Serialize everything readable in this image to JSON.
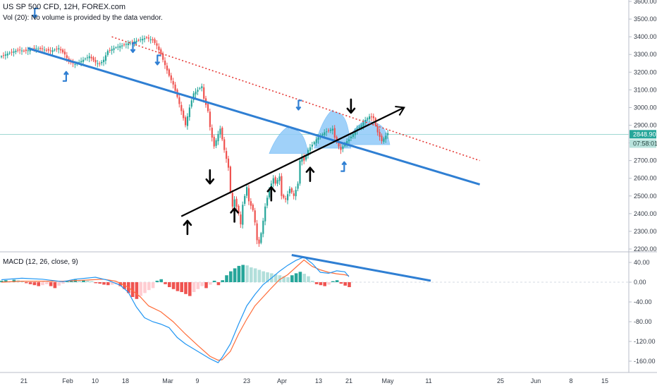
{
  "header": {
    "title": "US SP 500 CFD, 12H, FOREX.com",
    "volume_note": "Vol (20): No volume is provided by the data vendor.",
    "macd_label": "MACD (12, 26, close, 9)"
  },
  "colors": {
    "up": "#26a69a",
    "down": "#ef5350",
    "trendline": "#2f7fd3",
    "support": "#000000",
    "resistance": "#e53935",
    "pattern_fill": "#90caf9",
    "macd_line": "#2196f3",
    "signal_line": "#ff6d3a",
    "hist_pos_strong": "#26a69a",
    "hist_pos_weak": "#b2dfdb",
    "hist_neg_strong": "#ef5350",
    "hist_neg_weak": "#ffcdd2",
    "price_badge": "#26a69a",
    "countdown_badge": "#b9e3dd"
  },
  "chart_data": [
    {
      "type": "candlestick",
      "ylim": [
        2180,
        3600
      ],
      "y_ticks": [
        "3600.00",
        "3500.00",
        "3400.00",
        "3300.00",
        "3200.00",
        "3100.00",
        "3000.00",
        "2900.00",
        "2800.00",
        "2700.00",
        "2600.00",
        "2500.00",
        "2400.00",
        "2300.00",
        "2200.00"
      ],
      "y_tick_values": [
        3600,
        3500,
        3400,
        3300,
        3200,
        3100,
        3000,
        2900,
        2800,
        2700,
        2600,
        2500,
        2400,
        2300,
        2200
      ],
      "x_ticks": [
        "21",
        "Feb",
        "10",
        "18",
        "Mar",
        "9",
        "23",
        "Apr",
        "13",
        "21",
        "May",
        "11",
        "25",
        "Jun",
        "8",
        "15"
      ],
      "last_price": "2848.90",
      "last_price_value": 2848.9,
      "countdown": "07:58:01",
      "countdown_value": 2796,
      "price_path": [
        [
          0,
          3290
        ],
        [
          4,
          3310
        ],
        [
          8,
          3325
        ],
        [
          12,
          3320
        ],
        [
          16,
          3335
        ],
        [
          20,
          3330
        ],
        [
          24,
          3320
        ],
        [
          28,
          3335
        ],
        [
          31,
          3300
        ],
        [
          33,
          3260
        ],
        [
          36,
          3245
        ],
        [
          40,
          3270
        ],
        [
          43,
          3290
        ],
        [
          46,
          3255
        ],
        [
          48,
          3245
        ],
        [
          50,
          3270
        ],
        [
          52,
          3320
        ],
        [
          56,
          3340
        ],
        [
          60,
          3355
        ],
        [
          64,
          3370
        ],
        [
          68,
          3385
        ],
        [
          71,
          3395
        ],
        [
          74,
          3380
        ],
        [
          76,
          3350
        ],
        [
          78,
          3300
        ],
        [
          80,
          3240
        ],
        [
          82,
          3180
        ],
        [
          84,
          3130
        ],
        [
          86,
          3060
        ],
        [
          88,
          2980
        ],
        [
          90,
          2900
        ],
        [
          92,
          3000
        ],
        [
          94,
          3080
        ],
        [
          96,
          3100
        ],
        [
          98,
          3120
        ],
        [
          99,
          3050
        ],
        [
          101,
          2980
        ],
        [
          102,
          2890
        ],
        [
          103,
          2830
        ],
        [
          104,
          2780
        ],
        [
          106,
          2850
        ],
        [
          107,
          2880
        ],
        [
          109,
          2760
        ],
        [
          111,
          2660
        ],
        [
          112,
          2520
        ],
        [
          113,
          2440
        ],
        [
          114,
          2480
        ],
        [
          116,
          2400
        ],
        [
          117,
          2340
        ],
        [
          118,
          2450
        ],
        [
          120,
          2550
        ],
        [
          121,
          2470
        ],
        [
          123,
          2420
        ],
        [
          124,
          2350
        ],
        [
          125,
          2250
        ],
        [
          126,
          2230
        ],
        [
          127,
          2290
        ],
        [
          128,
          2360
        ],
        [
          129,
          2440
        ],
        [
          130,
          2490
        ],
        [
          131,
          2540
        ],
        [
          133,
          2600
        ],
        [
          134,
          2570
        ],
        [
          136,
          2610
        ],
        [
          137,
          2500
        ],
        [
          139,
          2480
        ],
        [
          141,
          2540
        ],
        [
          143,
          2500
        ],
        [
          145,
          2570
        ],
        [
          146,
          2700
        ],
        [
          147,
          2720
        ],
        [
          148,
          2700
        ],
        [
          150,
          2760
        ],
        [
          152,
          2790
        ],
        [
          154,
          2820
        ],
        [
          156,
          2840
        ],
        [
          158,
          2860
        ],
        [
          160,
          2870
        ],
        [
          162,
          2880
        ],
        [
          163,
          2830
        ],
        [
          165,
          2780
        ],
        [
          166,
          2760
        ],
        [
          168,
          2800
        ],
        [
          170,
          2820
        ],
        [
          172,
          2850
        ],
        [
          174,
          2880
        ],
        [
          176,
          2900
        ],
        [
          178,
          2930
        ],
        [
          180,
          2950
        ],
        [
          182,
          2940
        ],
        [
          184,
          2860
        ],
        [
          186,
          2810
        ],
        [
          188,
          2840
        ],
        [
          189,
          2855
        ]
      ],
      "lines": [
        {
          "name": "upper-trendline",
          "from": [
            13,
            3335
          ],
          "to": [
            234,
            2565
          ]
        },
        {
          "name": "support-trendline",
          "from": [
            88,
            2385
          ],
          "to": [
            197,
            3000
          ]
        },
        {
          "name": "resistance-dotted",
          "from": [
            54,
            3400
          ],
          "to": [
            234,
            2700
          ]
        }
      ],
      "arrows": [
        {
          "dir": "down",
          "style": "hook",
          "at": [
            17,
            3520
          ]
        },
        {
          "dir": "up",
          "style": "hook",
          "at": [
            31,
            3190
          ]
        },
        {
          "dir": "down",
          "style": "hook",
          "at": [
            65,
            3325
          ]
        },
        {
          "dir": "down",
          "style": "hook",
          "at": [
            77,
            3255
          ]
        },
        {
          "dir": "down",
          "style": "hook",
          "at": [
            146,
            3000
          ]
        },
        {
          "dir": "up",
          "style": "hook",
          "at": [
            167,
            2680
          ]
        },
        {
          "dir": "down",
          "style": "solid",
          "at": [
            102,
            2590
          ]
        },
        {
          "dir": "down",
          "style": "solid",
          "at": [
            171,
            2990
          ]
        },
        {
          "dir": "up",
          "style": "solid",
          "at": [
            91,
            2340
          ]
        },
        {
          "dir": "up",
          "style": "solid",
          "at": [
            114,
            2410
          ]
        },
        {
          "dir": "up",
          "style": "solid",
          "at": [
            132,
            2530
          ]
        },
        {
          "dir": "up",
          "style": "solid",
          "at": [
            151,
            2640
          ]
        }
      ],
      "patterns": [
        {
          "name": "left-shoulder",
          "from": 131,
          "to": 150,
          "base": 2740,
          "peak": 2880
        },
        {
          "name": "head",
          "from": 153,
          "to": 171,
          "base": 2770,
          "peak": 2975
        },
        {
          "name": "right-shoulder",
          "from": 168,
          "to": 190,
          "base": 2790,
          "peak": 2920
        }
      ]
    },
    {
      "type": "macd",
      "ylim": [
        -180,
        60
      ],
      "y_ticks": [
        "40.00",
        "0.00",
        "-40.00",
        "-80.00",
        "-120.00",
        "-160.00"
      ],
      "y_tick_values": [
        40,
        0,
        -40,
        -80,
        -120,
        -160
      ],
      "macd_line": [
        [
          0,
          5
        ],
        [
          10,
          8
        ],
        [
          20,
          6
        ],
        [
          30,
          1
        ],
        [
          36,
          6
        ],
        [
          46,
          10
        ],
        [
          52,
          4
        ],
        [
          58,
          -6
        ],
        [
          62,
          -20
        ],
        [
          66,
          -50
        ],
        [
          70,
          -72
        ],
        [
          74,
          -80
        ],
        [
          78,
          -85
        ],
        [
          82,
          -92
        ],
        [
          86,
          -112
        ],
        [
          90,
          -125
        ],
        [
          94,
          -135
        ],
        [
          98,
          -145
        ],
        [
          102,
          -155
        ],
        [
          106,
          -163
        ],
        [
          108,
          -152
        ],
        [
          112,
          -125
        ],
        [
          116,
          -85
        ],
        [
          120,
          -48
        ],
        [
          124,
          -25
        ],
        [
          128,
          -5
        ],
        [
          132,
          8
        ],
        [
          136,
          22
        ],
        [
          140,
          34
        ],
        [
          144,
          44
        ],
        [
          148,
          51
        ],
        [
          152,
          38
        ],
        [
          156,
          20
        ],
        [
          160,
          18
        ],
        [
          164,
          23
        ],
        [
          168,
          21
        ],
        [
          170,
          11
        ]
      ],
      "signal_line": [
        [
          0,
          0
        ],
        [
          10,
          2
        ],
        [
          20,
          2
        ],
        [
          30,
          2
        ],
        [
          40,
          4
        ],
        [
          50,
          6
        ],
        [
          56,
          2
        ],
        [
          62,
          -10
        ],
        [
          68,
          -30
        ],
        [
          72,
          -48
        ],
        [
          78,
          -60
        ],
        [
          84,
          -80
        ],
        [
          90,
          -105
        ],
        [
          96,
          -128
        ],
        [
          102,
          -150
        ],
        [
          106,
          -158
        ],
        [
          108,
          -157
        ],
        [
          112,
          -140
        ],
        [
          116,
          -105
        ],
        [
          120,
          -75
        ],
        [
          124,
          -48
        ],
        [
          128,
          -30
        ],
        [
          132,
          -12
        ],
        [
          136,
          5
        ],
        [
          140,
          15
        ],
        [
          144,
          30
        ],
        [
          148,
          45
        ],
        [
          152,
          32
        ],
        [
          156,
          25
        ],
        [
          160,
          20
        ],
        [
          164,
          17
        ],
        [
          168,
          15
        ],
        [
          170,
          13
        ]
      ],
      "histogram": [
        [
          0,
          3
        ],
        [
          2,
          4
        ],
        [
          4,
          2
        ],
        [
          6,
          5
        ],
        [
          8,
          4
        ],
        [
          10,
          3
        ],
        [
          12,
          -2
        ],
        [
          14,
          -4
        ],
        [
          16,
          -6
        ],
        [
          18,
          -8
        ],
        [
          20,
          -6
        ],
        [
          22,
          -4
        ],
        [
          24,
          -8
        ],
        [
          26,
          -12
        ],
        [
          28,
          -7
        ],
        [
          30,
          -3
        ],
        [
          32,
          2
        ],
        [
          34,
          4
        ],
        [
          36,
          5
        ],
        [
          38,
          3
        ],
        [
          40,
          4
        ],
        [
          42,
          3
        ],
        [
          44,
          2
        ],
        [
          46,
          -2
        ],
        [
          48,
          -3
        ],
        [
          50,
          -5
        ],
        [
          52,
          -6
        ],
        [
          54,
          -5
        ],
        [
          56,
          -4
        ],
        [
          58,
          -8
        ],
        [
          60,
          -14
        ],
        [
          62,
          -22
        ],
        [
          64,
          -30
        ],
        [
          66,
          -34
        ],
        [
          68,
          -28
        ],
        [
          70,
          -22
        ],
        [
          72,
          -16
        ],
        [
          74,
          -12
        ],
        [
          76,
          3
        ],
        [
          78,
          6
        ],
        [
          80,
          -4
        ],
        [
          82,
          -10
        ],
        [
          84,
          -14
        ],
        [
          86,
          -18
        ],
        [
          88,
          -20
        ],
        [
          90,
          -24
        ],
        [
          92,
          -28
        ],
        [
          94,
          -20
        ],
        [
          96,
          -14
        ],
        [
          98,
          -8
        ],
        [
          100,
          -12
        ],
        [
          102,
          -5
        ],
        [
          104,
          3
        ],
        [
          106,
          -6
        ],
        [
          108,
          4
        ],
        [
          110,
          14
        ],
        [
          112,
          22
        ],
        [
          114,
          28
        ],
        [
          116,
          33
        ],
        [
          118,
          35
        ],
        [
          120,
          34
        ],
        [
          122,
          30
        ],
        [
          124,
          28
        ],
        [
          126,
          25
        ],
        [
          128,
          22
        ],
        [
          130,
          20
        ],
        [
          132,
          18
        ],
        [
          134,
          16
        ],
        [
          136,
          14
        ],
        [
          138,
          12
        ],
        [
          140,
          10
        ],
        [
          142,
          14
        ],
        [
          144,
          18
        ],
        [
          146,
          21
        ],
        [
          148,
          17
        ],
        [
          150,
          12
        ],
        [
          152,
          3
        ],
        [
          154,
          -4
        ],
        [
          156,
          -6
        ],
        [
          158,
          -8
        ],
        [
          160,
          -5
        ],
        [
          162,
          2
        ],
        [
          164,
          4
        ],
        [
          166,
          -3
        ],
        [
          168,
          -7
        ],
        [
          170,
          -10
        ]
      ],
      "lines": [
        {
          "name": "macd-divergence-trendline",
          "from": [
            142,
            55
          ],
          "to": [
            210,
            3
          ]
        }
      ]
    }
  ]
}
